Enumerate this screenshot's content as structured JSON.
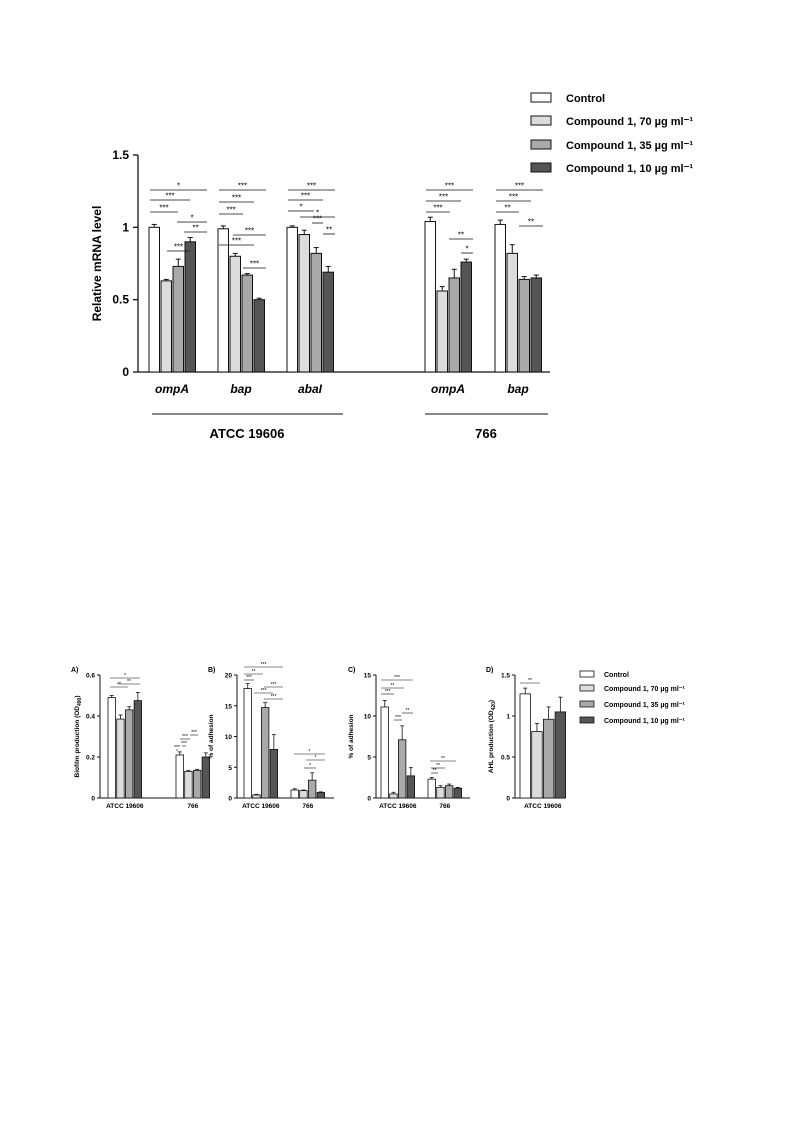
{
  "colors": {
    "control": "#ffffff",
    "c70": "#dcdcdc",
    "c35": "#a9a9a9",
    "c10": "#555555",
    "stroke": "#111111"
  },
  "legend": [
    "Control",
    "Compound 1, 70 µg ml⁻¹",
    "Compound 1, 35 µg ml⁻¹",
    "Compound 1, 10 µg ml⁻¹"
  ],
  "chart_data": [
    {
      "type": "bar",
      "ylabel": "Relative mRNA level",
      "ylim": [
        0,
        1.5
      ],
      "yticks": [
        "0",
        "0.5",
        "1",
        "1.5"
      ],
      "groups": [
        {
          "label": "ATCC 19606",
          "categories": [
            "ompA",
            "bap",
            "abaI"
          ]
        },
        {
          "label": "766",
          "categories": [
            "ompA",
            "bap"
          ]
        }
      ],
      "series": [
        {
          "name": "Control",
          "values": [
            1.0,
            0.99,
            1.0,
            1.04,
            1.02
          ],
          "errors": [
            0.02,
            0.02,
            0.01,
            0.03,
            0.03
          ]
        },
        {
          "name": "Compound 1, 70 µg ml⁻¹",
          "values": [
            0.63,
            0.8,
            0.95,
            0.56,
            0.82
          ],
          "errors": [
            0.01,
            0.02,
            0.03,
            0.03,
            0.06
          ]
        },
        {
          "name": "Compound 1, 35 µg ml⁻¹",
          "values": [
            0.73,
            0.67,
            0.82,
            0.65,
            0.64
          ],
          "errors": [
            0.05,
            0.01,
            0.04,
            0.06,
            0.02
          ]
        },
        {
          "name": "Compound 1, 10 µg ml⁻¹",
          "values": [
            0.9,
            0.5,
            0.69,
            0.76,
            0.65
          ],
          "errors": [
            0.03,
            0.01,
            0.04,
            0.02,
            0.02
          ]
        }
      ],
      "significance": [
        [
          "*",
          "***",
          "***",
          "*",
          "***",
          "**"
        ],
        [
          "***",
          "***",
          "***",
          "***",
          "***",
          "***"
        ],
        [
          "***",
          "***",
          "*",
          "*",
          "***",
          "**"
        ],
        [
          "***",
          "***",
          "***",
          "**",
          "*"
        ],
        [
          "***",
          "***",
          "**",
          "**"
        ]
      ]
    },
    {
      "panel": "A)",
      "type": "bar",
      "ylabel": "Biofilm production (OD",
      "ylabel_sub": "490",
      "ylim": [
        0,
        0.6
      ],
      "yticks": [
        "0",
        "0.2",
        "0.4",
        "0.6"
      ],
      "categories": [
        "ATCC 19606",
        "766"
      ],
      "series": [
        {
          "name": "Control",
          "values": [
            0.49,
            0.21
          ],
          "errors": [
            0.01,
            0.015
          ]
        },
        {
          "name": "Compound 1, 70 µg ml⁻¹",
          "values": [
            0.385,
            0.13
          ],
          "errors": [
            0.02,
            0.005
          ]
        },
        {
          "name": "Compound 1, 35 µg ml⁻¹",
          "values": [
            0.43,
            0.135
          ],
          "errors": [
            0.015,
            0.005
          ]
        },
        {
          "name": "Compound 1, 10 µg ml⁻¹",
          "values": [
            0.475,
            0.2
          ],
          "errors": [
            0.04,
            0.02
          ]
        }
      ],
      "significance": [
        [
          "*",
          "**",
          "**"
        ],
        [
          "***",
          "***",
          "***",
          "***"
        ]
      ]
    },
    {
      "panel": "B)",
      "type": "bar",
      "ylabel": "% of adhesion",
      "ylim": [
        0,
        20
      ],
      "yticks": [
        "0",
        "5",
        "10",
        "15",
        "20"
      ],
      "categories": [
        "ATCC 19606",
        "766"
      ],
      "series": [
        {
          "name": "Control",
          "values": [
            17.8,
            1.3
          ],
          "errors": [
            0.8,
            0.2
          ]
        },
        {
          "name": "Compound 1, 70 µg ml⁻¹",
          "values": [
            0.5,
            1.2
          ],
          "errors": [
            0.1,
            0.1
          ]
        },
        {
          "name": "Compound 1, 35 µg ml⁻¹",
          "values": [
            14.7,
            2.9
          ],
          "errors": [
            0.8,
            1.2
          ]
        },
        {
          "name": "Compound 1, 10 µg ml⁻¹",
          "values": [
            7.9,
            0.9
          ],
          "errors": [
            2.4,
            0.1
          ]
        }
      ],
      "significance": [
        [
          "***",
          "**",
          "***",
          "***",
          "***",
          "***"
        ],
        [
          "*",
          "*",
          "*"
        ]
      ]
    },
    {
      "panel": "C)",
      "type": "bar",
      "ylabel": "% of adhesion",
      "ylim": [
        0,
        15
      ],
      "yticks": [
        "0",
        "5",
        "10",
        "15"
      ],
      "categories": [
        "ATCC 19606",
        "766"
      ],
      "series": [
        {
          "name": "Control",
          "values": [
            11.1,
            2.3
          ],
          "errors": [
            0.8,
            0.2
          ]
        },
        {
          "name": "Compound 1, 70 µg ml⁻¹",
          "values": [
            0.5,
            1.3
          ],
          "errors": [
            0.2,
            0.2
          ]
        },
        {
          "name": "Compound 1, 35 µg ml⁻¹",
          "values": [
            7.1,
            1.5
          ],
          "errors": [
            1.7,
            0.2
          ]
        },
        {
          "name": "Compound 1, 10 µg ml⁻¹",
          "values": [
            2.7,
            1.2
          ],
          "errors": [
            1.0,
            0.1
          ]
        }
      ],
      "significance": [
        [
          "***",
          "**",
          "***",
          "***",
          "**"
        ],
        [
          "**",
          "**",
          "**"
        ]
      ]
    },
    {
      "panel": "D)",
      "type": "bar",
      "ylabel": "AHL production (OD",
      "ylabel_sub": "420",
      "ylim": [
        0,
        1.5
      ],
      "yticks": [
        "0",
        "0.5",
        "1",
        "1.5"
      ],
      "categories": [
        "ATCC 19606"
      ],
      "series": [
        {
          "name": "Control",
          "values": [
            1.27
          ],
          "errors": [
            0.07
          ]
        },
        {
          "name": "Compound 1, 70 µg ml⁻¹",
          "values": [
            0.81
          ],
          "errors": [
            0.1
          ]
        },
        {
          "name": "Compound 1, 35 µg ml⁻¹",
          "values": [
            0.96
          ],
          "errors": [
            0.15
          ]
        },
        {
          "name": "Compound 1, 10 µg ml⁻¹",
          "values": [
            1.05
          ],
          "errors": [
            0.18
          ]
        }
      ],
      "significance": [
        [
          "**"
        ]
      ]
    }
  ]
}
